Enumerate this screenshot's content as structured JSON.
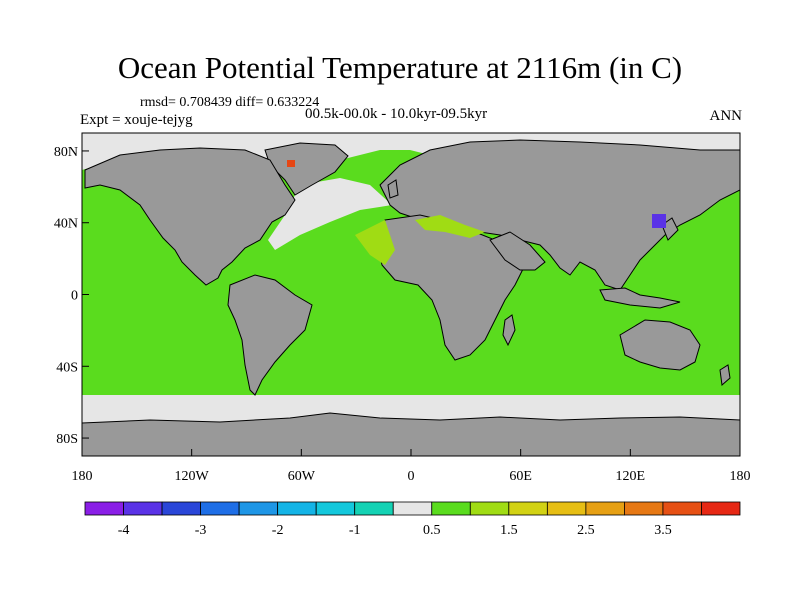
{
  "title": "Ocean Potential Temperature at 2116m (in C)",
  "stats": "rmsd= 0.708439 diff= 0.633224",
  "experiment": "Expt = xouje-tejyg",
  "period": "00.5k-00.0k - 10.0kyr-09.5kyr",
  "season": "ANN",
  "lat_ticks": [
    {
      "value": 80,
      "label": "80N"
    },
    {
      "value": 40,
      "label": "40N"
    },
    {
      "value": 0,
      "label": "0"
    },
    {
      "value": -40,
      "label": "40S"
    },
    {
      "value": -80,
      "label": "80S"
    }
  ],
  "lon_ticks": [
    {
      "value": -180,
      "label": "180"
    },
    {
      "value": -120,
      "label": "120W"
    },
    {
      "value": -60,
      "label": "60W"
    },
    {
      "value": 0,
      "label": "0"
    },
    {
      "value": 60,
      "label": "60E"
    },
    {
      "value": 120,
      "label": "120E"
    },
    {
      "value": 180,
      "label": "180"
    }
  ],
  "colorbar": {
    "colors": [
      "#8a1ee6",
      "#5a32e6",
      "#2a46d8",
      "#1e6ee6",
      "#1e96e6",
      "#14b4e6",
      "#14c8dc",
      "#14d2b4",
      "#e6e6e6",
      "#5adc1e",
      "#a0dc14",
      "#d2d214",
      "#e6be14",
      "#e6a014",
      "#e67814",
      "#e65014",
      "#e62814"
    ],
    "labels": [
      {
        "boundary": 1,
        "text": "-4"
      },
      {
        "boundary": 3,
        "text": "-3"
      },
      {
        "boundary": 5,
        "text": "-2"
      },
      {
        "boundary": 7,
        "text": "-1"
      },
      {
        "boundary": 9,
        "text": "0.5"
      },
      {
        "boundary": 11,
        "text": "1.5"
      },
      {
        "boundary": 13,
        "text": "2.5"
      },
      {
        "boundary": 15,
        "text": "3.5"
      }
    ]
  },
  "colors": {
    "ocean": "#5adc1e",
    "land": "#999999",
    "near_zero": "#e6e6e6",
    "warm_spot": "#e64614",
    "cold_spot": "#5a32e6",
    "yellow_green": "#a0dc14"
  }
}
